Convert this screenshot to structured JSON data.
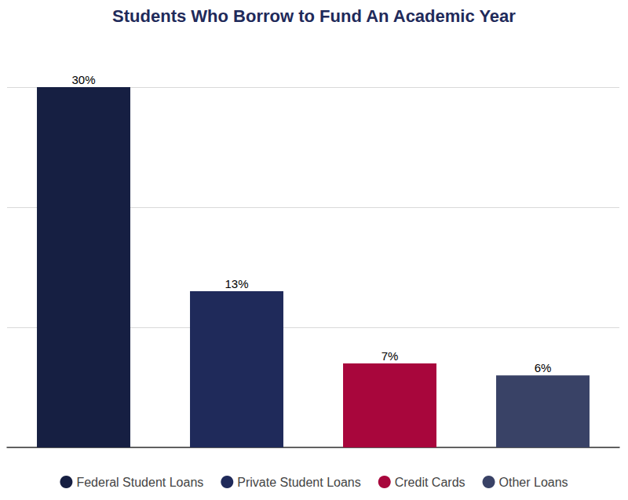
{
  "chart_data": {
    "type": "bar",
    "title": "Students Who Borrow to Fund An Academic Year",
    "categories": [
      "Federal Student Loans",
      "Private Student Loans",
      "Credit Cards",
      "Other Loans"
    ],
    "values": [
      30,
      13,
      7,
      6
    ],
    "value_labels": [
      "30%",
      "13%",
      "7%",
      "6%"
    ],
    "colors": [
      "#161f42",
      "#1f2a5a",
      "#a8063c",
      "#394266"
    ],
    "ylim": [
      0,
      30
    ],
    "yticks": [
      0,
      10,
      20,
      30
    ],
    "grid": true,
    "data_labels": true,
    "tick_labels": false,
    "legend": "bottom"
  }
}
